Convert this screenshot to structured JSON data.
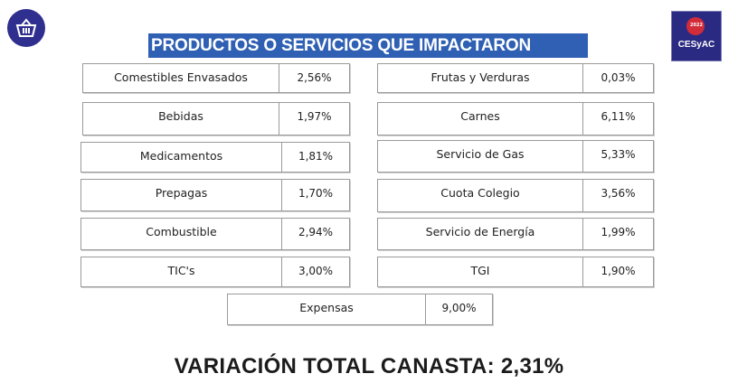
{
  "header": {
    "title": "PRODUCTOS O SERVICIOS QUE IMPACTARON",
    "left_logo_icon": "shopping-basket-icon",
    "right_logo": {
      "small_text": "2022",
      "brand": "CESyAC"
    }
  },
  "left_items": [
    {
      "name": "Comestibles Envasados",
      "value": "2,56%"
    },
    {
      "name": "Bebidas",
      "value": "1,97%"
    },
    {
      "name": "Medicamentos",
      "value": "1,81%"
    },
    {
      "name": "Prepagas",
      "value": "1,70%"
    },
    {
      "name": "Combustible",
      "value": "2,94%"
    },
    {
      "name": "TIC's",
      "value": "3,00%"
    }
  ],
  "right_items": [
    {
      "name": "Frutas y Verduras",
      "value": "0,03%"
    },
    {
      "name": "Carnes",
      "value": "6,11%"
    },
    {
      "name": "Servicio de Gas",
      "value": "5,33%"
    },
    {
      "name": "Cuota Colegio",
      "value": "3,56%"
    },
    {
      "name": "Servicio de Energía",
      "value": "1,99%"
    },
    {
      "name": "TGI",
      "value": "1,90%"
    }
  ],
  "center_item": {
    "name": "Expensas",
    "value": "9,00%"
  },
  "total": "VARIACIÓN TOTAL CANASTA: 2,31%",
  "colors": {
    "title_bg": "#2f60b3",
    "logo_bg": "#2e2f8f",
    "badge": "#d22c3a"
  }
}
